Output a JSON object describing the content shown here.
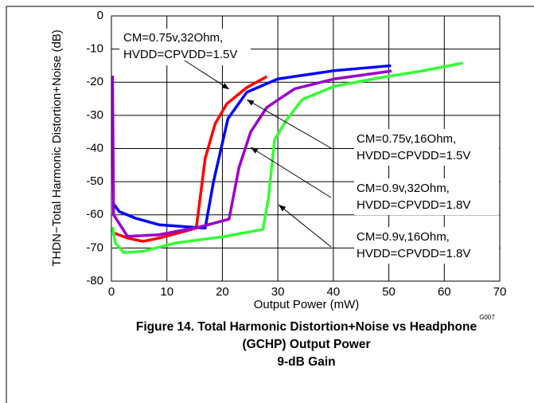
{
  "chart_data": {
    "type": "line",
    "xlabel": "Output Power (mW)",
    "ylabel": "THDN−Total Harmonic Distortion+Noise (dB)",
    "xlim": [
      0,
      70
    ],
    "xticks": [
      0,
      10,
      20,
      30,
      40,
      50,
      60,
      70
    ],
    "ylim": [
      -80,
      0
    ],
    "yticks": [
      0,
      -10,
      -20,
      -30,
      -40,
      -50,
      -60,
      -70,
      -80
    ],
    "grid": true,
    "figure_code": "G007",
    "caption": [
      "Figure 14. Total Harmonic Distortion+Noise vs Headphone",
      "(GCHP) Output Power",
      "9-dB Gain"
    ],
    "series": [
      {
        "color": "#ff0000",
        "x": [
          0.3,
          2.9,
          5.7,
          8.6,
          15.3,
          16.9,
          18.7,
          20.8,
          24.4,
          28
        ],
        "values": [
          -65.4,
          -67,
          -68,
          -67,
          -64,
          -43,
          -32.5,
          -26.5,
          -21.6,
          -18.3
        ]
      },
      {
        "color": "#0000ff",
        "x": [
          0.3,
          1.4,
          4.3,
          8.6,
          16.9,
          18.4,
          21,
          24.4,
          30,
          40.2,
          50.4
        ],
        "values": [
          -56.5,
          -59,
          -61,
          -63,
          -64,
          -50,
          -31,
          -23,
          -19,
          -16.5,
          -15
        ]
      },
      {
        "color": "#9900cc",
        "x": [
          0.2,
          0.4,
          2.9,
          8.6,
          15.8,
          21.2,
          23,
          25.1,
          28,
          33,
          40.2,
          50.5
        ],
        "values": [
          -18,
          -60,
          -66.5,
          -66,
          -63.7,
          -61.3,
          -45.7,
          -35,
          -27.6,
          -22,
          -19,
          -16.6
        ]
      },
      {
        "color": "#33ff33",
        "x": [
          0.2,
          0.7,
          2.2,
          5.7,
          11.5,
          20.1,
          27.3,
          28.3,
          29.4,
          31.6,
          34.4,
          40.2,
          48.8,
          56,
          63.3
        ],
        "values": [
          -63.7,
          -68.5,
          -71.4,
          -71,
          -68.5,
          -66.6,
          -64.4,
          -55,
          -37.3,
          -31.3,
          -25.2,
          -21.2,
          -18.5,
          -16.6,
          -14.2
        ]
      }
    ],
    "annotations": [
      {
        "lines": [
          "CM=0.75v,32Ohm,",
          "HVDD=CPVDD=1.5V"
        ]
      },
      {
        "lines": [
          "CM=0.75v,16Ohm,",
          "HVDD=CPVDD=1.5V"
        ]
      },
      {
        "lines": [
          "CM=0.9v,32Ohm,",
          "HVDD=CPVDD=1.8V"
        ]
      },
      {
        "lines": [
          "CM=0.9v,16Ohm,",
          "HVDD=CPVDD=1.8V"
        ]
      }
    ]
  }
}
